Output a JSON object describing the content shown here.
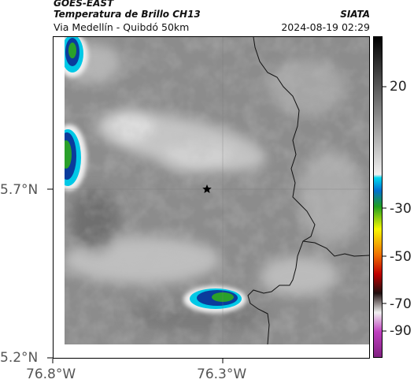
{
  "header": {
    "satellite": "GOES-EAST",
    "product": "Temperatura de Brillo CH13",
    "region": "Via Medellín - Quibdó 50km",
    "org": "SIATA",
    "datetime": "2024-08-19 02:29"
  },
  "axes": {
    "y_ticks": [
      "5.7°N",
      "5.2°N"
    ],
    "x_ticks": [
      "76.8°W",
      "76.3°W"
    ]
  },
  "colorbar": {
    "ticks": [
      "20",
      "-30",
      "-50",
      "-70",
      "-90"
    ]
  },
  "map": {
    "marker_icon": "star-icon",
    "colors": {
      "cloud_light": "#d8d8d8",
      "background_gray": "#8c8c8c",
      "cyan": "#00c8e6",
      "blue": "#0a3c9c",
      "green": "#2aa02a",
      "yellow": "#f4f400"
    }
  }
}
